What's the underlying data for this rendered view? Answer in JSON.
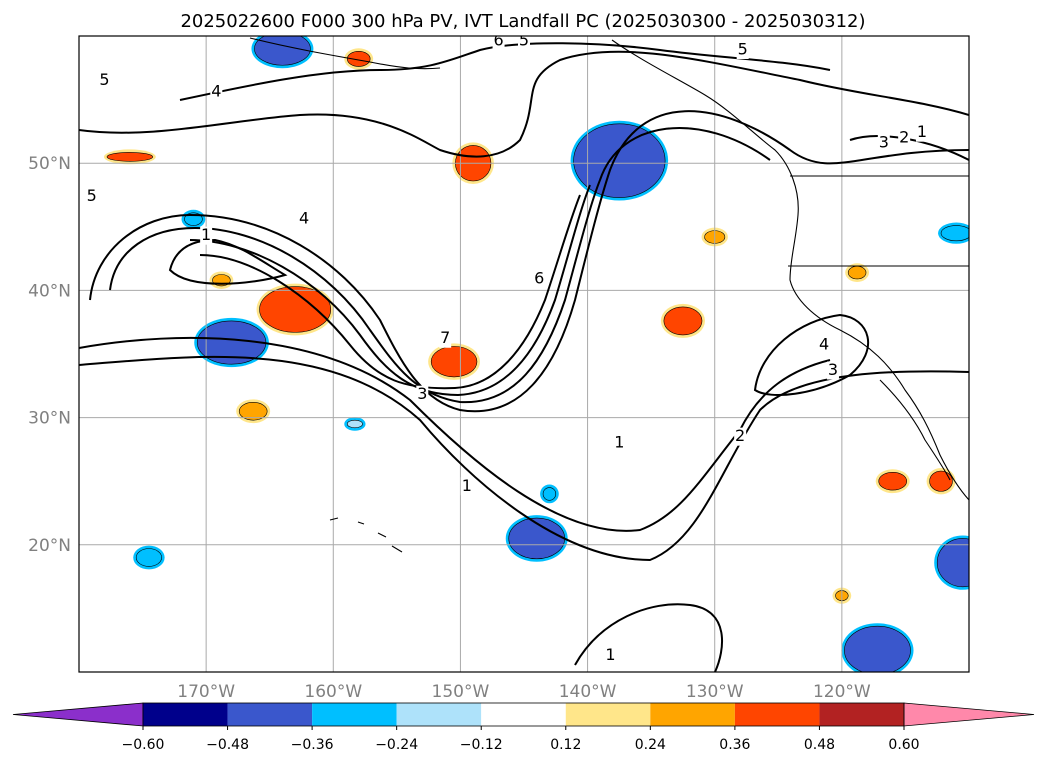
{
  "chart_data": {
    "type": "contour-map",
    "title": "2025022600 F000 300 hPa PV, IVT Landfall PC (2025030300 - 2025030312)",
    "map_extent": {
      "lon": [
        -180,
        -110
      ],
      "lat": [
        10,
        60
      ]
    },
    "grid": true,
    "lat_ticks": [
      {
        "value": 20,
        "label": "20°N"
      },
      {
        "value": 30,
        "label": "30°N"
      },
      {
        "value": 40,
        "label": "40°N"
      },
      {
        "value": 50,
        "label": "50°N"
      }
    ],
    "lon_ticks": [
      {
        "value": -170,
        "label": "170°W"
      },
      {
        "value": -160,
        "label": "160°W"
      },
      {
        "value": -150,
        "label": "150°W"
      },
      {
        "value": -140,
        "label": "140°W"
      },
      {
        "value": -130,
        "label": "130°W"
      },
      {
        "value": -120,
        "label": "120°W"
      }
    ],
    "pv_contour_labels": [
      {
        "text": "6",
        "lon": -147.0,
        "lat": 59.6
      },
      {
        "text": "5",
        "lon": -178.0,
        "lat": 56.5
      },
      {
        "text": "4",
        "lon": -169.2,
        "lat": 55.6
      },
      {
        "text": "5",
        "lon": -145.0,
        "lat": 59.6
      },
      {
        "text": "5",
        "lon": -127.8,
        "lat": 58.9
      },
      {
        "text": "3",
        "lon": -116.7,
        "lat": 51.6
      },
      {
        "text": "2",
        "lon": -115.1,
        "lat": 52.0
      },
      {
        "text": "1",
        "lon": -113.7,
        "lat": 52.4
      },
      {
        "text": "4",
        "lon": -162.3,
        "lat": 45.6
      },
      {
        "text": "1",
        "lon": -170.0,
        "lat": 44.3
      },
      {
        "text": "5",
        "lon": -179.0,
        "lat": 47.4
      },
      {
        "text": "6",
        "lon": -143.8,
        "lat": 40.9
      },
      {
        "text": "7",
        "lon": -151.2,
        "lat": 36.2
      },
      {
        "text": "3",
        "lon": -153.0,
        "lat": 31.8
      },
      {
        "text": "4",
        "lon": -121.4,
        "lat": 35.7
      },
      {
        "text": "3",
        "lon": -120.7,
        "lat": 33.7
      },
      {
        "text": "1",
        "lon": -137.5,
        "lat": 28.0
      },
      {
        "text": "2",
        "lon": -128.0,
        "lat": 28.5
      },
      {
        "text": "1",
        "lon": -149.5,
        "lat": 24.6
      },
      {
        "text": "1",
        "lon": -138.2,
        "lat": 11.3
      }
    ],
    "colorbar": {
      "boundaries": [
        -0.72,
        -0.6,
        -0.48,
        -0.36,
        -0.24,
        -0.12,
        0.12,
        0.24,
        0.36,
        0.48,
        0.6,
        0.72
      ],
      "tick_labels": [
        "−0.60",
        "−0.48",
        "−0.36",
        "−0.24",
        "−0.12",
        "0.12",
        "0.24",
        "0.36",
        "0.48",
        "0.60"
      ],
      "colors": [
        "#8B2FCB",
        "#00008B",
        "#3A57CC",
        "#00BFFF",
        "#AEE2FA",
        "#FFFFFF",
        "#FFE68A",
        "#FFA500",
        "#FF4500",
        "#B22222",
        "#FF88AA"
      ],
      "extend": "both"
    },
    "shaded_regions": [
      {
        "lon": -164.0,
        "lat": 59.0,
        "rx": 2.2,
        "ry": 1.3,
        "value": -0.4
      },
      {
        "lon": -168.0,
        "lat": 35.9,
        "rx": 2.7,
        "ry": 1.7,
        "value": -0.42
      },
      {
        "lon": -137.5,
        "lat": 50.2,
        "rx": 3.6,
        "ry": 2.9,
        "value": -0.42
      },
      {
        "lon": -144.0,
        "lat": 20.5,
        "rx": 2.2,
        "ry": 1.6,
        "value": -0.38
      },
      {
        "lon": -110.5,
        "lat": 18.6,
        "rx": 2.0,
        "ry": 1.9,
        "value": -0.42
      },
      {
        "lon": -117.2,
        "lat": 11.7,
        "rx": 2.6,
        "ry": 1.9,
        "value": -0.42
      },
      {
        "lon": -174.5,
        "lat": 19.0,
        "rx": 1.0,
        "ry": 0.7,
        "value": -0.3
      },
      {
        "lon": -171.0,
        "lat": 45.6,
        "rx": 0.7,
        "ry": 0.5,
        "value": -0.3
      },
      {
        "lon": -111.0,
        "lat": 44.5,
        "rx": 1.2,
        "ry": 0.6,
        "value": -0.3
      },
      {
        "lon": -163.0,
        "lat": 38.5,
        "rx": 2.8,
        "ry": 1.8,
        "value": 0.4
      },
      {
        "lon": -149.0,
        "lat": 50.0,
        "rx": 1.4,
        "ry": 1.4,
        "value": 0.42
      },
      {
        "lon": -150.5,
        "lat": 34.4,
        "rx": 1.8,
        "ry": 1.2,
        "value": 0.4
      },
      {
        "lon": -132.5,
        "lat": 37.6,
        "rx": 1.5,
        "ry": 1.1,
        "value": 0.38
      },
      {
        "lon": -166.3,
        "lat": 30.5,
        "rx": 1.1,
        "ry": 0.7,
        "value": 0.34
      },
      {
        "lon": -116.0,
        "lat": 25.0,
        "rx": 1.1,
        "ry": 0.7,
        "value": 0.38
      },
      {
        "lon": -112.2,
        "lat": 25.0,
        "rx": 0.9,
        "ry": 0.8,
        "value": 0.4
      },
      {
        "lon": -176.0,
        "lat": 50.5,
        "rx": 1.8,
        "ry": 0.35,
        "value": 0.38
      },
      {
        "lon": -168.8,
        "lat": 40.8,
        "rx": 0.7,
        "ry": 0.45,
        "value": 0.3
      },
      {
        "lon": -158.0,
        "lat": 58.2,
        "rx": 0.9,
        "ry": 0.6,
        "value": 0.36
      },
      {
        "lon": -130.0,
        "lat": 44.2,
        "rx": 0.8,
        "ry": 0.5,
        "value": 0.3
      },
      {
        "lon": -118.8,
        "lat": 41.4,
        "rx": 0.7,
        "ry": 0.5,
        "value": 0.3
      },
      {
        "lon": -120.0,
        "lat": 16.0,
        "rx": 0.5,
        "ry": 0.4,
        "value": 0.3
      },
      {
        "lon": -143.0,
        "lat": 24.0,
        "rx": 0.5,
        "ry": 0.5,
        "value": -0.28
      },
      {
        "lon": -158.3,
        "lat": 29.5,
        "rx": 0.6,
        "ry": 0.3,
        "value": -0.24
      }
    ]
  }
}
